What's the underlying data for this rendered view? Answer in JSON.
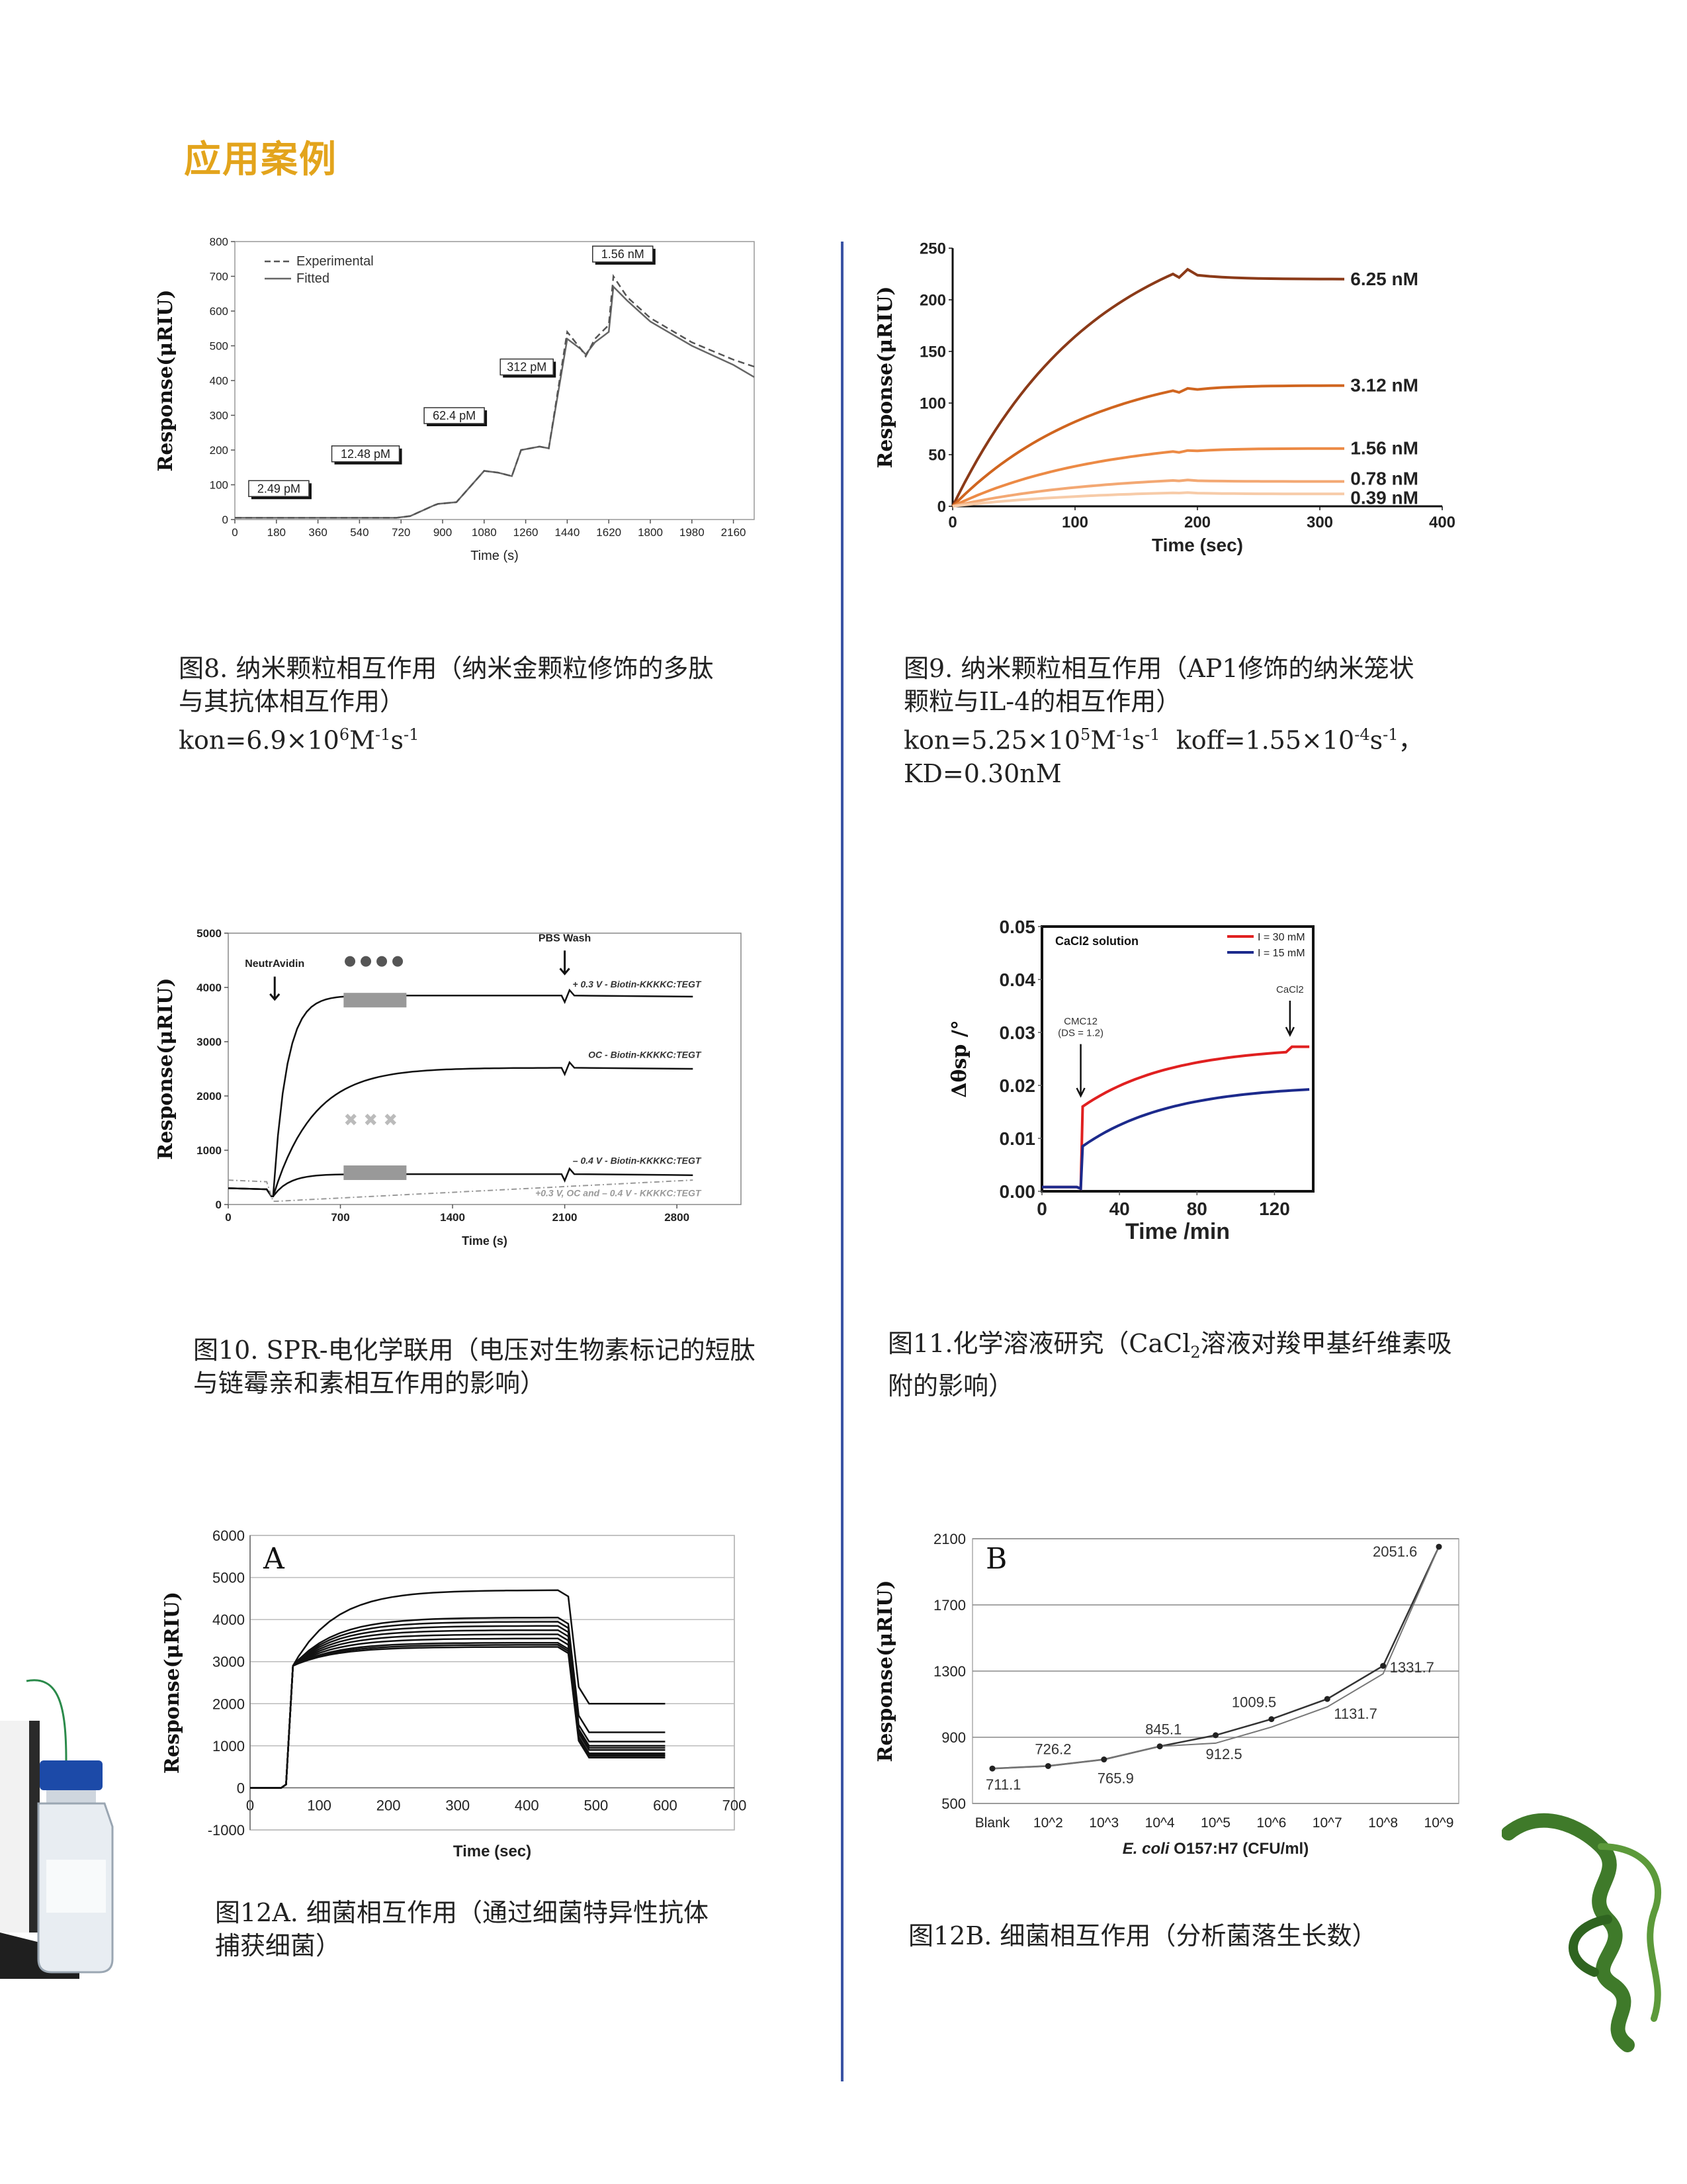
{
  "heading": "应用案例",
  "captions": {
    "fig8": [
      "图8. 纳米颗粒相互作用（纳米金颗粒修饰的多肽",
      "与其抗体相互作用）"
    ],
    "fig8_eq": {
      "a": "kon=6.9×10",
      "a_sup": "6",
      "b": "M",
      "b_sup": "-1",
      "c": "s",
      "c_sup": "-1"
    },
    "fig9": [
      "图9. 纳米颗粒相互作用（AP1修饰的纳米笼状",
      "颗粒与IL-4的相互作用）"
    ],
    "fig9_eq": {
      "a": "kon=5.25×10",
      "a_sup": "5",
      "b": "M",
      "b_sup": "-1",
      "c": "s",
      "c_sup": "-1",
      "d": "  koff=1.55×10",
      "d_sup": "-4",
      "e": "s",
      "e_sup": "-1",
      "f": "，"
    },
    "fig9_eq2": "KD=0.30nM",
    "fig10": [
      "图10. SPR-电化学联用（电压对生物素标记的短肽",
      "与链霉亲和素相互作用的影响）"
    ],
    "fig11": {
      "a": "图11.化学溶液研究（CaCl",
      "sub": "2",
      "b": "溶液对羧甲基纤维素吸",
      "line2": "附的影响）"
    },
    "fig12a": [
      "图12A. 细菌相互作用（通过细菌特异性抗体",
      "捕获细菌）"
    ],
    "fig12b": "图12B. 细菌相互作用（分析菌落生长数）"
  },
  "chart_data": [
    {
      "id": "fig8",
      "type": "line",
      "ylabel": "Response(μRIU)",
      "xlabel": "Time (s)",
      "xlim": [
        0,
        2250
      ],
      "ylim": [
        0,
        800
      ],
      "xticks": [
        0,
        180,
        360,
        540,
        720,
        900,
        1080,
        1260,
        1440,
        1620,
        1800,
        1980,
        2160
      ],
      "yticks": [
        0,
        100,
        200,
        300,
        400,
        500,
        600,
        700,
        800
      ],
      "legend": [
        "Experimental",
        "Fitted"
      ],
      "annotations": [
        {
          "label": "2.49 pM",
          "x": 60,
          "y": 70
        },
        {
          "label": "12.48 pM",
          "x": 420,
          "y": 170
        },
        {
          "label": "62.4 pM",
          "x": 820,
          "y": 280
        },
        {
          "label": "312 pM",
          "x": 1150,
          "y": 420
        },
        {
          "label": "1.56 nM",
          "x": 1550,
          "y": 745
        }
      ],
      "series": [
        {
          "name": "Experimental",
          "style": "dashed",
          "x": [
            0,
            700,
            760,
            860,
            880,
            960,
            1000,
            1080,
            1140,
            1200,
            1240,
            1320,
            1360,
            1440,
            1500,
            1520,
            1560,
            1620,
            1640,
            1700,
            1800,
            1980,
            2160,
            2250
          ],
          "y": [
            5,
            5,
            10,
            40,
            45,
            50,
            80,
            140,
            135,
            125,
            200,
            210,
            205,
            540,
            490,
            470,
            520,
            560,
            700,
            640,
            580,
            510,
            460,
            440
          ]
        },
        {
          "name": "Fitted",
          "style": "solid",
          "x": [
            0,
            700,
            760,
            860,
            880,
            960,
            1000,
            1080,
            1140,
            1200,
            1240,
            1320,
            1360,
            1440,
            1500,
            1520,
            1560,
            1620,
            1640,
            1700,
            1800,
            1980,
            2160,
            2250
          ],
          "y": [
            5,
            5,
            10,
            40,
            45,
            50,
            80,
            140,
            135,
            125,
            200,
            210,
            205,
            520,
            490,
            475,
            510,
            540,
            670,
            630,
            570,
            500,
            445,
            410
          ]
        }
      ]
    },
    {
      "id": "fig9",
      "type": "line",
      "ylabel": "Response(μRIU)",
      "xlabel": "Time (sec)",
      "xlim": [
        0,
        400
      ],
      "ylim": [
        0,
        250
      ],
      "xticks": [
        0,
        100,
        200,
        300,
        400
      ],
      "yticks": [
        0,
        50,
        100,
        150,
        200,
        250
      ],
      "series": [
        {
          "name": "6.25 nM",
          "color": "#8b3a18",
          "plateau": 220,
          "peak": 225
        },
        {
          "name": "3.12 nM",
          "color": "#d0651f",
          "plateau": 117,
          "peak": 112
        },
        {
          "name": "1.56 nM",
          "color": "#ec8a45",
          "plateau": 56,
          "peak": 53
        },
        {
          "name": "0.78 nM",
          "color": "#f3a873",
          "plateau": 24,
          "peak": 25
        },
        {
          "name": "0.39 nM",
          "color": "#f7cba8",
          "plateau": 12,
          "peak": 13
        }
      ]
    },
    {
      "id": "fig10",
      "type": "line",
      "ylabel": "Response(μRIU)",
      "xlabel": "Time (s)",
      "xlim": [
        0,
        3200
      ],
      "ylim": [
        0,
        5000
      ],
      "xticks": [
        0,
        700,
        1400,
        2100,
        2800
      ],
      "yticks": [
        0,
        1000,
        2000,
        3000,
        4000,
        5000
      ],
      "annotations": [
        {
          "label": "NeutrAvidin",
          "x": 290
        },
        {
          "label": "PBS Wash",
          "x": 2100
        }
      ],
      "series": [
        {
          "name": "+ 0.3 V - Biotin-KKKKC:TEGT",
          "plateau": 3850
        },
        {
          "name": "OC - Biotin-KKKKC:TEGT",
          "plateau": 2520
        },
        {
          "name": "– 0.4 V - Biotin-KKKKC:TEGT",
          "plateau": 560
        },
        {
          "name": "+0.3 V, OC and  – 0.4 V - KKKKC:TEGT",
          "plateau": 200
        }
      ]
    },
    {
      "id": "fig11",
      "type": "line",
      "ylabel": "Δθsp /°",
      "xlabel": "Time /min",
      "xlim": [
        0,
        140
      ],
      "ylim": [
        0,
        0.05
      ],
      "xticks": [
        0,
        40,
        80,
        120
      ],
      "yticks": [
        0.0,
        0.01,
        0.02,
        0.03,
        0.04,
        0.05
      ],
      "title": "CaCl2 solution",
      "annotations": [
        {
          "label": "CMC12",
          "label2": "(DS = 1.2)",
          "x": 20
        },
        {
          "label": "CaCl2",
          "x": 128
        }
      ],
      "series": [
        {
          "name": "I = 30 mM",
          "color": "#e02020",
          "end": 0.0265
        },
        {
          "name": "I = 15 mM",
          "color": "#1c2a8c",
          "end": 0.0192
        }
      ]
    },
    {
      "id": "fig12a",
      "type": "line",
      "panel": "A",
      "ylabel": "Response(μRIU)",
      "xlabel": "Time (sec)",
      "xlim": [
        0,
        700
      ],
      "ylim": [
        -1000,
        6000
      ],
      "xticks": [
        0,
        100,
        200,
        300,
        400,
        500,
        600,
        700
      ],
      "yticks": [
        -1000,
        0,
        1000,
        2000,
        3000,
        4000,
        5000,
        6000
      ],
      "series_plateaus": [
        4700,
        4050,
        3950,
        3850,
        3750,
        3650,
        3550,
        3450,
        3400,
        3350
      ],
      "series_finals": [
        2000,
        1320,
        1100,
        1000,
        950,
        900,
        820,
        780,
        760,
        720
      ]
    },
    {
      "id": "fig12b",
      "type": "line",
      "panel": "B",
      "ylabel": "Response(μRIU)",
      "xlabel_italic": "E. coli",
      "xlabel": "O157:H7 (CFU/ml)",
      "ylim": [
        500,
        2100
      ],
      "yticks": [
        500,
        900,
        1300,
        1700,
        2100
      ],
      "categories": [
        "Blank",
        "10^2",
        "10^3",
        "10^4",
        "10^5",
        "10^6",
        "10^7",
        "10^8",
        "10^9"
      ],
      "values": [
        711.1,
        726.2,
        765.9,
        845.1,
        912.5,
        1009.5,
        1131.7,
        1331.7,
        2051.6
      ]
    }
  ]
}
